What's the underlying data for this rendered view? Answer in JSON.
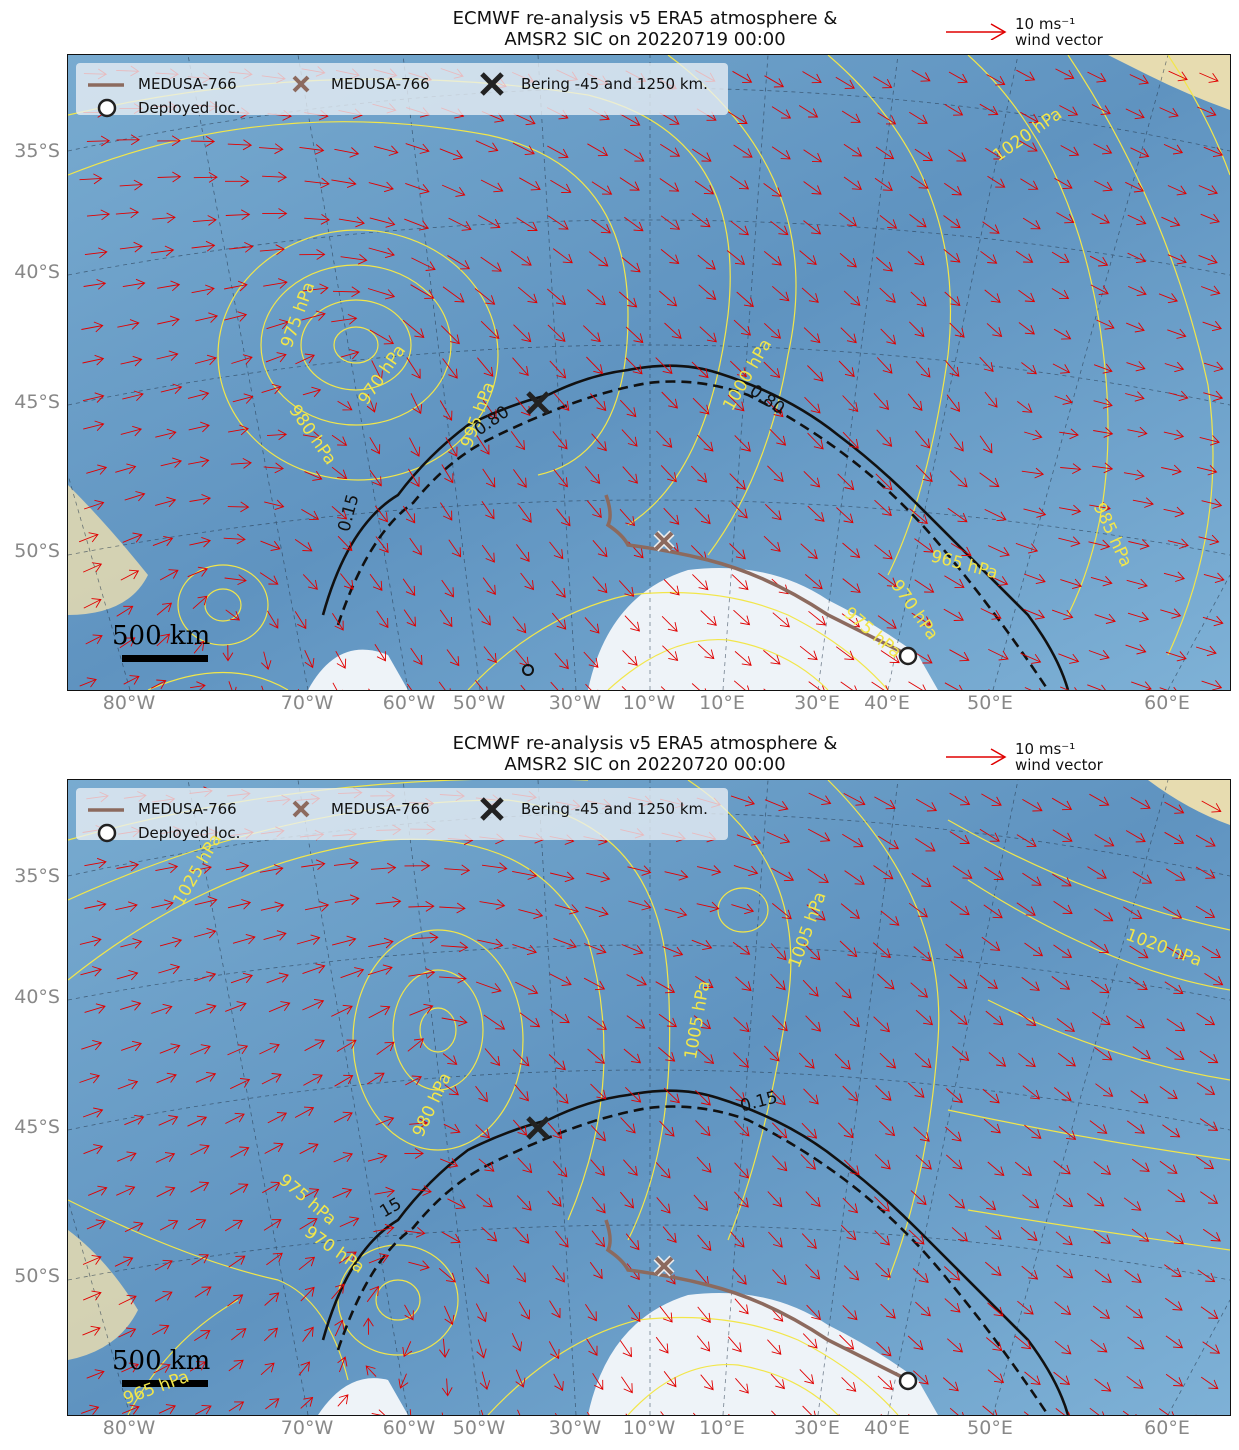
{
  "legend": {
    "track_label": "MEDUSA-766",
    "last_pos_label": "MEDUSA-766",
    "ref_label": "Bering -45 and 1250 km.",
    "deployed_label": "Deployed loc."
  },
  "reference_vector": {
    "speed_label": "10 ms⁻¹",
    "caption": "wind vector",
    "color": "#e00000"
  },
  "scale_bar": {
    "label": "500 km"
  },
  "lat_labels": [
    "35°S",
    "40°S",
    "45°S",
    "50°S"
  ],
  "lon_labels": [
    "80°W",
    "70°W",
    "60°W",
    "50°W",
    "30°W",
    "10°W",
    "10°E",
    "30°E",
    "40°E",
    "50°E",
    "60°E"
  ],
  "colors": {
    "ocean": "#6ea0c8",
    "ice": "#eef3f8",
    "land": "#e7dcb0",
    "track": "#8c6a5e",
    "wind": "#e00000",
    "isobar": "#f2e64a",
    "ice_edge": "#111111"
  },
  "panels": [
    {
      "title_line1": "ECMWF re-analysis v5 ERA5 atmosphere &",
      "title_line2": "AMSR2 SIC on 20220719 00:00",
      "isobar_labels": [
        "1020 hPa",
        "975 hPa",
        "970 hPa",
        "980 hPa",
        "995 hPa",
        "1000 hPa",
        "985 hPa",
        "965 hPa",
        "970 hPa",
        "975 hPa"
      ],
      "ice_labels": [
        "0.80",
        "0.80",
        "0.15"
      ]
    },
    {
      "title_line1": "ECMWF re-analysis v5 ERA5 atmosphere &",
      "title_line2": "AMSR2 SIC on 20220720 00:00",
      "isobar_labels": [
        "1025 hPa",
        "1005 hPa",
        "1020 hPa",
        "1005 hPa",
        "980 hPa",
        "975 hPa",
        "970 hPa",
        "965 hPa"
      ],
      "ice_labels": [
        "0.15",
        "15"
      ]
    }
  ]
}
